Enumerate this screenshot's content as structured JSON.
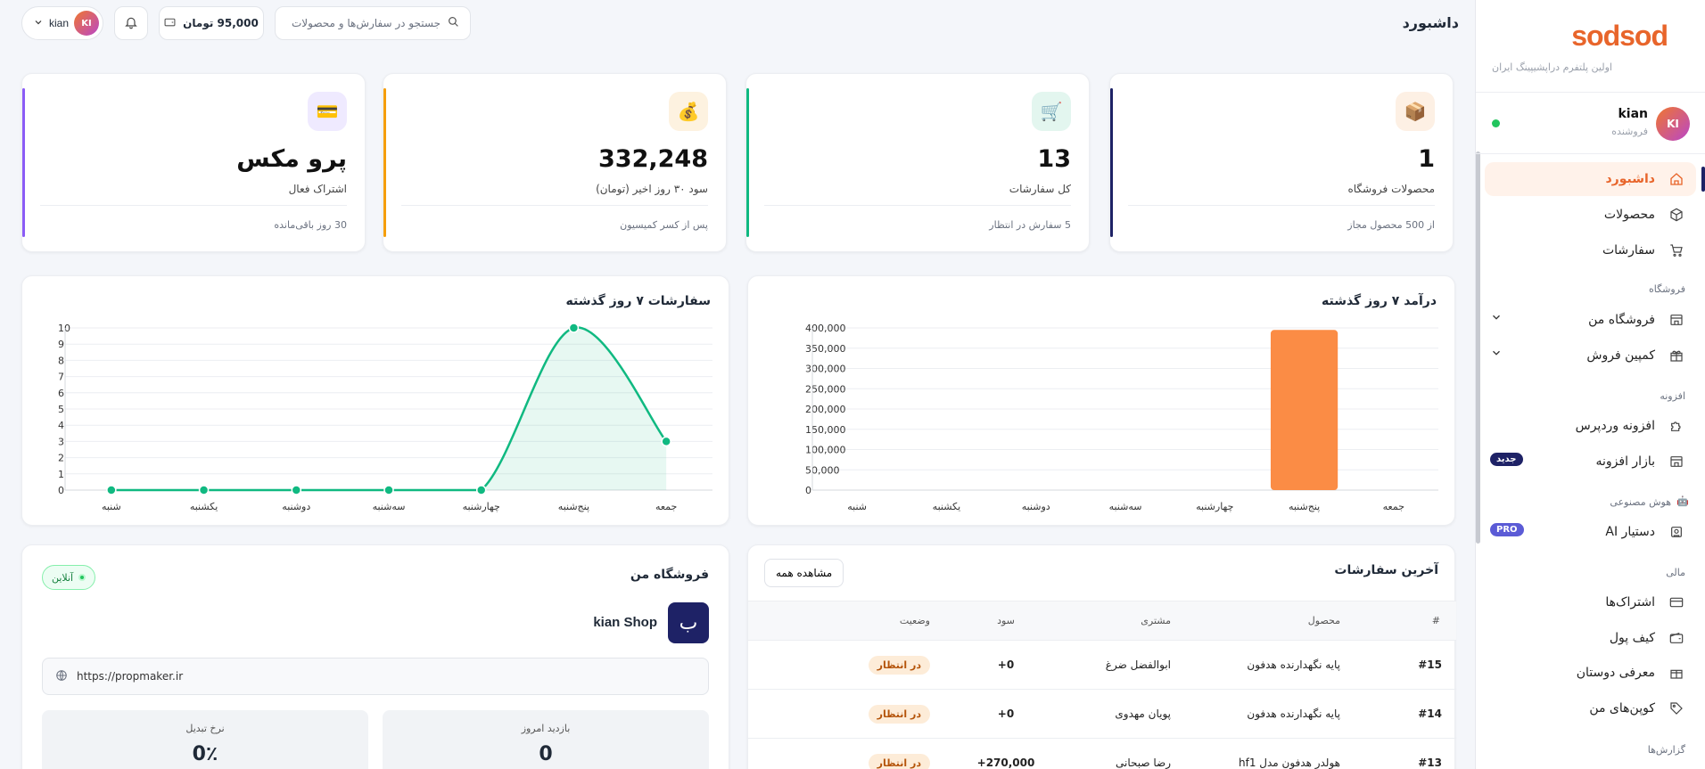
{
  "brand": {
    "logo": "sodsod",
    "tagline": "اولین پلتفرم دراپشیپینگ ایران"
  },
  "user": {
    "initials": "KI",
    "name": "kian",
    "role": "فروشنده"
  },
  "nav": {
    "dashboard": "داشبورد",
    "products": "محصولات",
    "orders": "سفارشات",
    "section_store": "فروشگاه",
    "my_store": "فروشگاه من",
    "campaign": "کمپین فروش",
    "section_plugin": "افزونه",
    "wp_plugin": "افزونه وردپرس",
    "plugin_market": "بازار افزونه",
    "badge_new": "جدید",
    "section_ai": "هوش مصنوعی",
    "ai_assistant": "دستیار AI",
    "badge_pro": "PRO",
    "section_finance": "مالی",
    "subscriptions": "اشتراک‌ها",
    "wallet": "کیف پول",
    "referral": "معرفی دوستان",
    "coupons": "کوپن‌های من",
    "section_reports": "گزارش‌ها"
  },
  "topbar": {
    "title": "داشبورد",
    "search_placeholder": "جستجو در سفارش‌ها و محصولات",
    "balance": "95,000 تومان",
    "username": "kian"
  },
  "stats": [
    {
      "value": "1",
      "label": "محصولات فروشگاه",
      "sub": "از 500 محصول مجاز",
      "accent": "#1e2266",
      "icon_bg": "#fdf0e4",
      "icon": "📦"
    },
    {
      "value": "13",
      "label": "کل سفارشات",
      "sub": "5 سفارش در انتظار",
      "accent": "#10b981",
      "icon_bg": "#e3f6ef",
      "icon": "🛒"
    },
    {
      "value": "332,248",
      "label": "سود ۳۰ روز اخیر (تومان)",
      "sub": "پس از کسر کمیسیون",
      "accent": "#f59e0b",
      "icon_bg": "#fdf2e0",
      "icon": "💰"
    },
    {
      "value": "پرو مکس",
      "label": "اشتراک فعال",
      "sub": "30 روز باقی‌مانده",
      "accent": "#8b5cf6",
      "icon_bg": "#efeaff",
      "icon": "💳"
    }
  ],
  "chart_data": [
    {
      "type": "bar",
      "title": "درآمد ۷ روز گذشته",
      "categories": [
        "شنبه",
        "یکشنبه",
        "دوشنبه",
        "سه‌شنبه",
        "چهارشنبه",
        "پنج‌شنبه",
        "جمعه"
      ],
      "values": [
        0,
        0,
        0,
        0,
        0,
        395000,
        0
      ],
      "ylim": [
        0,
        400000
      ],
      "yticks": [
        "0",
        "50,000",
        "100,000",
        "150,000",
        "200,000",
        "250,000",
        "300,000",
        "350,000",
        "400,000"
      ],
      "color": "#fb8c45",
      "grid": true
    },
    {
      "type": "area",
      "title": "سفارشات ۷ روز گذشته",
      "categories": [
        "شنبه",
        "یکشنبه",
        "دوشنبه",
        "سه‌شنبه",
        "چهارشنبه",
        "پنج‌شنبه",
        "جمعه"
      ],
      "values": [
        0,
        0,
        0,
        0,
        0,
        10,
        3
      ],
      "ylim": [
        0,
        10
      ],
      "yticks": [
        "0",
        "1",
        "2",
        "3",
        "4",
        "5",
        "6",
        "7",
        "8",
        "9",
        "10"
      ],
      "color": "#10b981",
      "grid": true
    }
  ],
  "orders": {
    "title": "آخرین سفارشات",
    "view_all": "مشاهده همه",
    "headers": [
      "#",
      "محصول",
      "مشتری",
      "سود",
      "وضعیت"
    ],
    "rows": [
      {
        "id": "#15",
        "product": "پایه نگهدارنده هدفون",
        "customer": "ابوالفضل ضرغ",
        "profit": "+0",
        "status": "در انتظار"
      },
      {
        "id": "#14",
        "product": "پایه نگهدارنده هدفون",
        "customer": "پویان مهدوی",
        "profit": "+0",
        "status": "در انتظار"
      },
      {
        "id": "#13",
        "product": "هولدر هدفون مدل hf1",
        "customer": "رضا صبحانی",
        "profit": "+270,000",
        "status": "در انتظار"
      }
    ]
  },
  "store": {
    "title": "فروشگاه من",
    "online": "آنلاین",
    "logo_letter": "ب",
    "name": "kian Shop",
    "url": "https://propmaker.ir",
    "visits_label": "بازدید امروز",
    "visits_value": "0",
    "conv_label": "نرخ تبدیل",
    "conv_value": "0٪"
  }
}
